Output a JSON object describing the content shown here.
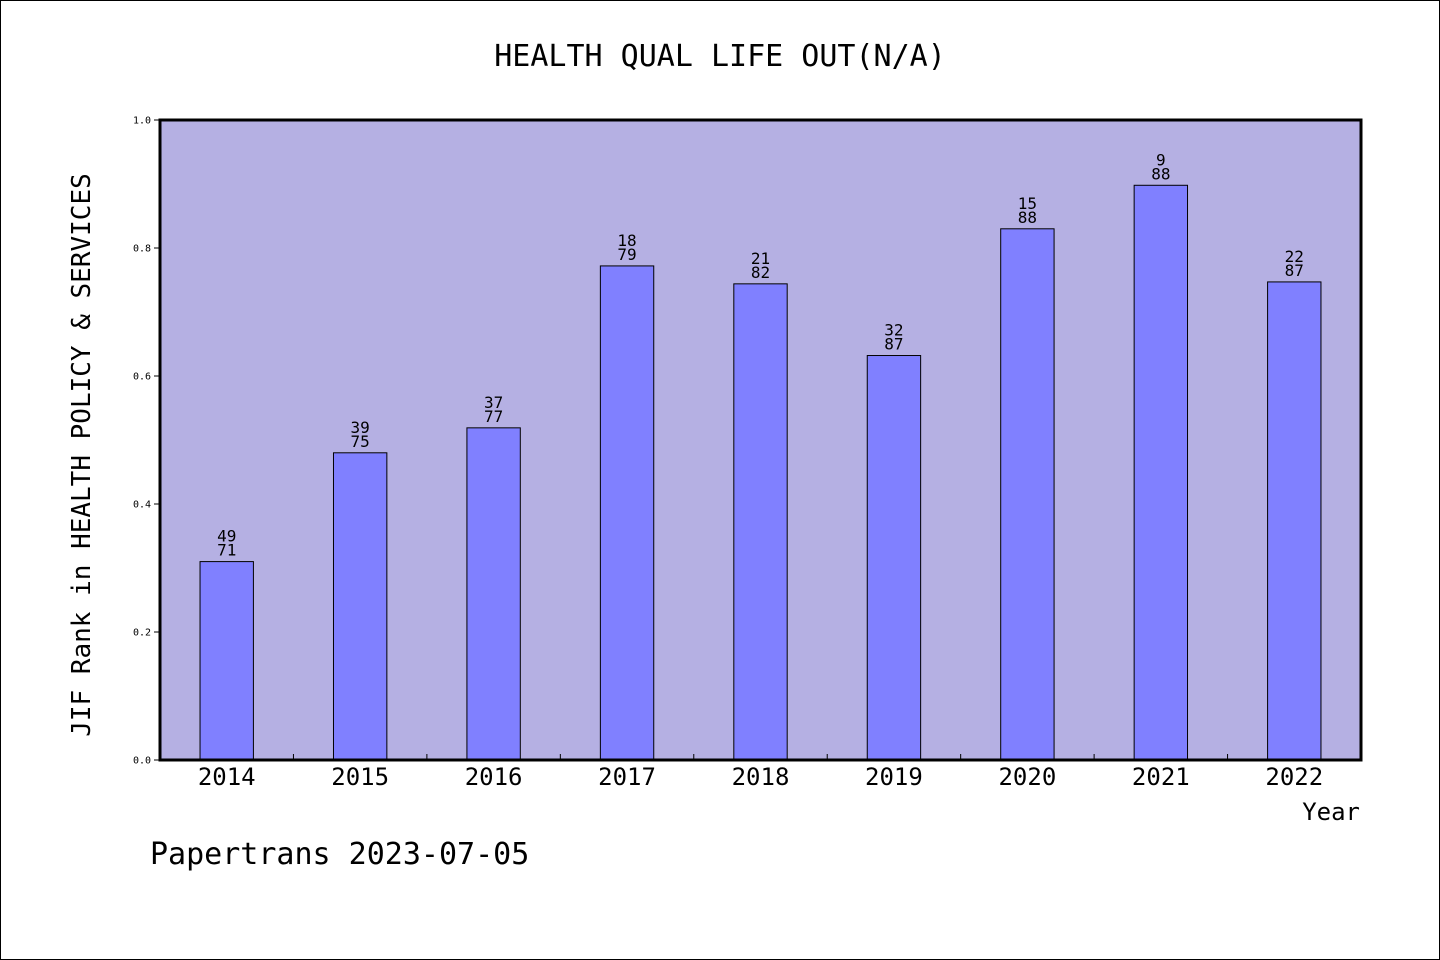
{
  "chart_data": {
    "type": "bar",
    "title": "HEALTH QUAL LIFE OUT(N/A)",
    "xlabel": "Year",
    "ylabel": "JIF Rank in HEALTH POLICY & SERVICES",
    "ylim": [
      0,
      1
    ],
    "yticks": [
      "0.0",
      "0.2",
      "0.4",
      "0.6",
      "0.8",
      "1.0"
    ],
    "categories": [
      "2014",
      "2015",
      "2016",
      "2017",
      "2018",
      "2019",
      "2020",
      "2021",
      "2022"
    ],
    "values": [
      0.31,
      0.48,
      0.519,
      0.772,
      0.744,
      0.632,
      0.83,
      0.898,
      0.747
    ],
    "bar_labels": [
      [
        "49",
        "71"
      ],
      [
        "39",
        "75"
      ],
      [
        "37",
        "77"
      ],
      [
        "18",
        "79"
      ],
      [
        "21",
        "82"
      ],
      [
        "32",
        "87"
      ],
      [
        "15",
        "88"
      ],
      [
        "9",
        "88"
      ],
      [
        "22",
        "87"
      ]
    ],
    "grid": false,
    "colors": {
      "plot_background": "#b5b0e3",
      "bar_fill": "#8080ff",
      "bar_edge": "#000000"
    }
  },
  "footer": {
    "text": "Papertrans 2023-07-05"
  }
}
